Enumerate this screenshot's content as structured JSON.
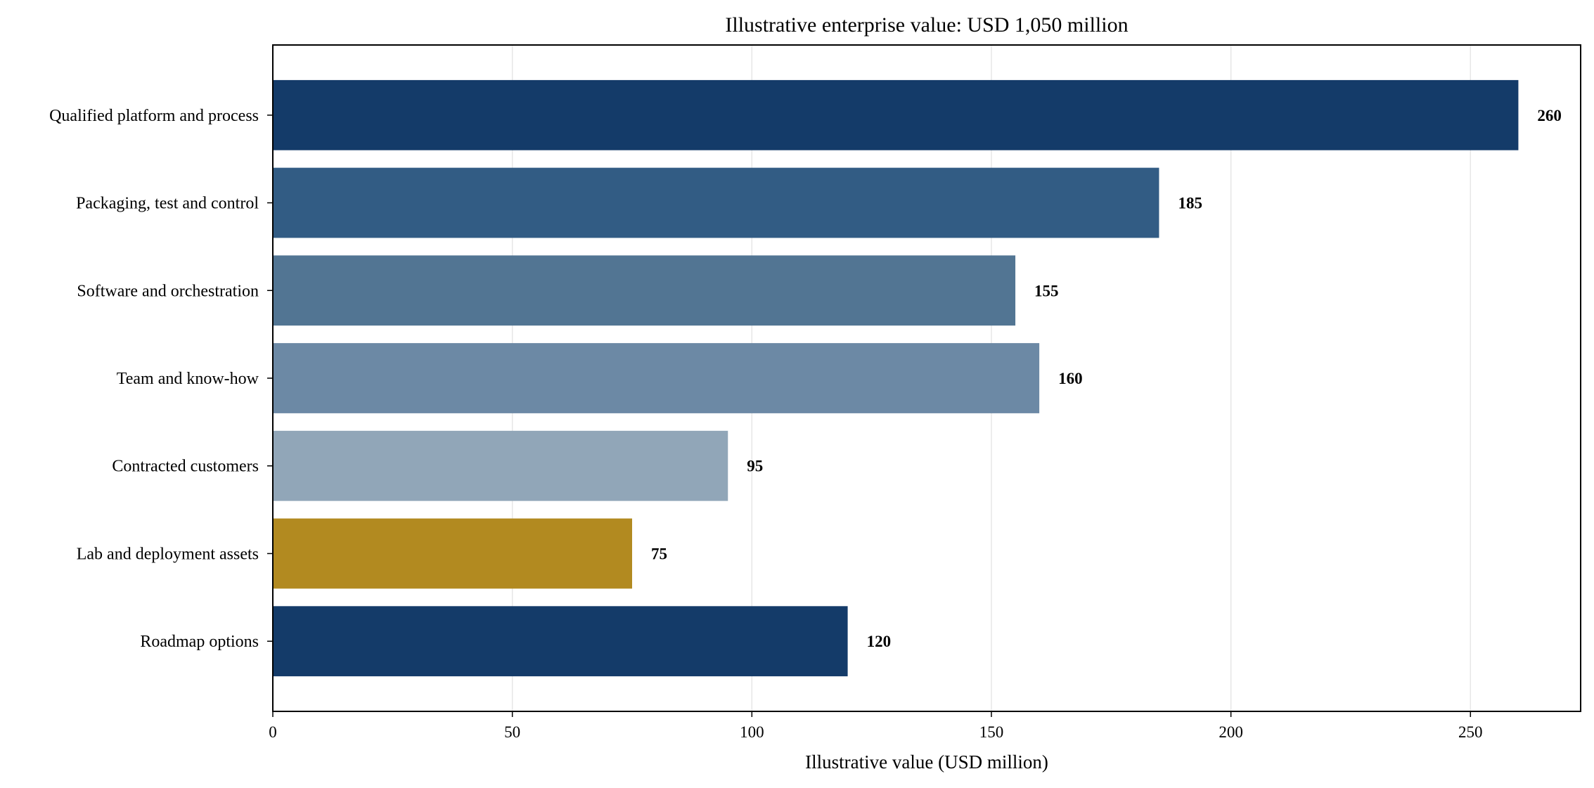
{
  "chart_data": {
    "type": "bar",
    "orientation": "horizontal",
    "title": "Illustrative enterprise value: USD 1,050 million",
    "xlabel": "Illustrative value (USD million)",
    "ylabel": "",
    "xlim": [
      0,
      273
    ],
    "xticks": [
      0,
      50,
      100,
      150,
      200,
      250
    ],
    "grid": "vertical",
    "categories": [
      "Qualified platform and process",
      "Packaging, test and control",
      "Software and orchestration",
      "Team and know-how",
      "Contracted customers",
      "Lab and deployment assets",
      "Roadmap options"
    ],
    "values": [
      260,
      185,
      155,
      160,
      95,
      75,
      120
    ],
    "value_labels": [
      "260",
      "185",
      "155",
      "160",
      "95",
      "75",
      "120"
    ],
    "colors": [
      "#143b69",
      "#325c84",
      "#527593",
      "#6c89a5",
      "#91a6b8",
      "#b28a20",
      "#143b69"
    ]
  }
}
